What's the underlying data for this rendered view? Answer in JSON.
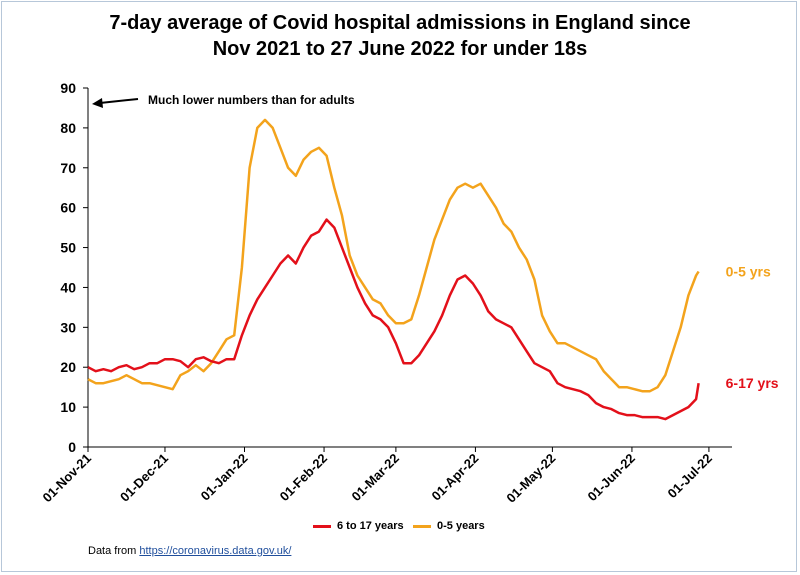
{
  "title_line1": "7-day average of Covid hospital admissions in England since",
  "title_line2": "Nov 2021 to 27 June 2022 for under 18s",
  "annotation": "Much lower numbers than for adults",
  "source_prefix": "Data from ",
  "source_link": "https://coronavirus.data.gov.uk/",
  "colors": {
    "red": "#e3101a",
    "orange": "#f3a31c",
    "axis": "#000000"
  },
  "chart_data": {
    "type": "line",
    "title": "7-day average of Covid hospital admissions in England since Nov 2021 to 27 June 2022 for under 18s",
    "xlabel": "",
    "ylabel": "",
    "x_range": [
      "2021-11-01",
      "2022-07-10"
    ],
    "ylim": [
      0,
      90
    ],
    "yticks": [
      0,
      10,
      20,
      30,
      40,
      50,
      60,
      70,
      80,
      90
    ],
    "xtick_labels": [
      "01-Nov-21",
      "01-Dec-21",
      "01-Jan-22",
      "01-Feb-22",
      "01-Mar-22",
      "01-Apr-22",
      "01-May-22",
      "01-Jun-22",
      "01-Jul-22"
    ],
    "xtick_dates": [
      "2021-11-01",
      "2021-12-01",
      "2022-01-01",
      "2022-02-01",
      "2022-03-01",
      "2022-04-01",
      "2022-05-01",
      "2022-06-01",
      "2022-07-01"
    ],
    "grid": false,
    "legend_position": "bottom",
    "series": [
      {
        "name": "6 to 17 years",
        "end_label": "6-17 yrs",
        "color": "#e3101a",
        "x": [
          "2021-11-01",
          "2021-11-04",
          "2021-11-07",
          "2021-11-10",
          "2021-11-13",
          "2021-11-16",
          "2021-11-19",
          "2021-11-22",
          "2021-11-25",
          "2021-11-28",
          "2021-12-01",
          "2021-12-04",
          "2021-12-07",
          "2021-12-10",
          "2021-12-13",
          "2021-12-16",
          "2021-12-19",
          "2021-12-22",
          "2021-12-25",
          "2021-12-28",
          "2021-12-31",
          "2022-01-03",
          "2022-01-06",
          "2022-01-09",
          "2022-01-12",
          "2022-01-15",
          "2022-01-18",
          "2022-01-21",
          "2022-01-24",
          "2022-01-27",
          "2022-01-30",
          "2022-02-02",
          "2022-02-05",
          "2022-02-08",
          "2022-02-11",
          "2022-02-14",
          "2022-02-17",
          "2022-02-20",
          "2022-02-23",
          "2022-02-26",
          "2022-03-01",
          "2022-03-04",
          "2022-03-07",
          "2022-03-10",
          "2022-03-13",
          "2022-03-16",
          "2022-03-19",
          "2022-03-22",
          "2022-03-25",
          "2022-03-28",
          "2022-03-31",
          "2022-04-03",
          "2022-04-06",
          "2022-04-09",
          "2022-04-12",
          "2022-04-15",
          "2022-04-18",
          "2022-04-21",
          "2022-04-24",
          "2022-04-27",
          "2022-04-30",
          "2022-05-03",
          "2022-05-06",
          "2022-05-09",
          "2022-05-12",
          "2022-05-15",
          "2022-05-18",
          "2022-05-21",
          "2022-05-24",
          "2022-05-27",
          "2022-05-30",
          "2022-06-02",
          "2022-06-05",
          "2022-06-08",
          "2022-06-11",
          "2022-06-14",
          "2022-06-17",
          "2022-06-20",
          "2022-06-23",
          "2022-06-26",
          "2022-06-27"
        ],
        "values": [
          20,
          19,
          19.5,
          19,
          20,
          20.5,
          19.5,
          20,
          21,
          21,
          22,
          22,
          21.5,
          20,
          22,
          22.5,
          21.5,
          21,
          22,
          22,
          28,
          33,
          37,
          40,
          43,
          46,
          48,
          46,
          50,
          53,
          54,
          57,
          55,
          50,
          45,
          40,
          36,
          33,
          32,
          30,
          26,
          21,
          21,
          23,
          26,
          29,
          33,
          38,
          42,
          43,
          41,
          38,
          34,
          32,
          31,
          30,
          27,
          24,
          21,
          20,
          19,
          16,
          15,
          14.5,
          14,
          13,
          11,
          10,
          9.5,
          8.5,
          8,
          8,
          7.5,
          7.5,
          7.5,
          7,
          8,
          9,
          10,
          12,
          16
        ]
      },
      {
        "name": "0-5 years",
        "end_label": "0-5 yrs",
        "color": "#f3a31c",
        "x": [
          "2021-11-01",
          "2021-11-04",
          "2021-11-07",
          "2021-11-10",
          "2021-11-13",
          "2021-11-16",
          "2021-11-19",
          "2021-11-22",
          "2021-11-25",
          "2021-11-28",
          "2021-12-01",
          "2021-12-04",
          "2021-12-07",
          "2021-12-10",
          "2021-12-13",
          "2021-12-16",
          "2021-12-19",
          "2021-12-22",
          "2021-12-25",
          "2021-12-28",
          "2021-12-31",
          "2022-01-03",
          "2022-01-06",
          "2022-01-09",
          "2022-01-12",
          "2022-01-15",
          "2022-01-18",
          "2022-01-21",
          "2022-01-24",
          "2022-01-27",
          "2022-01-30",
          "2022-02-02",
          "2022-02-05",
          "2022-02-08",
          "2022-02-11",
          "2022-02-14",
          "2022-02-17",
          "2022-02-20",
          "2022-02-23",
          "2022-02-26",
          "2022-03-01",
          "2022-03-04",
          "2022-03-07",
          "2022-03-10",
          "2022-03-13",
          "2022-03-16",
          "2022-03-19",
          "2022-03-22",
          "2022-03-25",
          "2022-03-28",
          "2022-03-31",
          "2022-04-03",
          "2022-04-06",
          "2022-04-09",
          "2022-04-12",
          "2022-04-15",
          "2022-04-18",
          "2022-04-21",
          "2022-04-24",
          "2022-04-27",
          "2022-04-30",
          "2022-05-03",
          "2022-05-06",
          "2022-05-09",
          "2022-05-12",
          "2022-05-15",
          "2022-05-18",
          "2022-05-21",
          "2022-05-24",
          "2022-05-27",
          "2022-05-30",
          "2022-06-02",
          "2022-06-05",
          "2022-06-08",
          "2022-06-11",
          "2022-06-14",
          "2022-06-17",
          "2022-06-20",
          "2022-06-23",
          "2022-06-26",
          "2022-06-27"
        ],
        "values": [
          17,
          16,
          16,
          16.5,
          17,
          18,
          17,
          16,
          16,
          15.5,
          15,
          14.5,
          18,
          19,
          20.5,
          19,
          21,
          24,
          27,
          28,
          45,
          70,
          80,
          82,
          80,
          75,
          70,
          68,
          72,
          74,
          75,
          73,
          65,
          58,
          48,
          43,
          40,
          37,
          36,
          33,
          31,
          31,
          32,
          38,
          45,
          52,
          57,
          62,
          65,
          66,
          65,
          66,
          63,
          60,
          56,
          54,
          50,
          47,
          42,
          33,
          29,
          26,
          26,
          25,
          24,
          23,
          22,
          19,
          17,
          15,
          15,
          14.5,
          14,
          14,
          15,
          18,
          24,
          30,
          38,
          43,
          44
        ]
      }
    ]
  }
}
